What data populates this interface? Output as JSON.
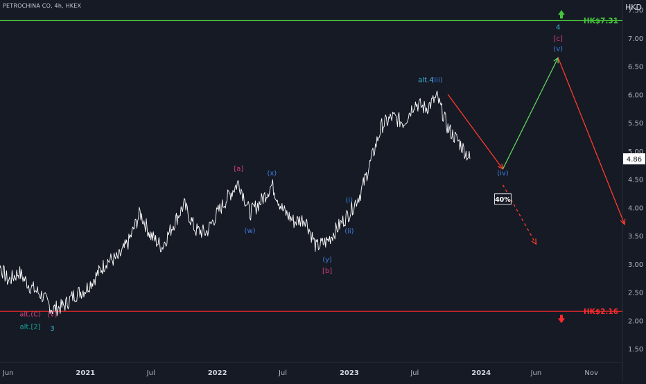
{
  "header": {
    "symbol_title": "PETROCHINA CO, 4h, HKEX",
    "currency": "HKD"
  },
  "chart_data": {
    "type": "line",
    "title": "PETROCHINA CO, 4h, HKEX",
    "xlabel": "",
    "ylabel": "",
    "currency": "HKD",
    "ylim": [
      1.5,
      7.5
    ],
    "grid": false,
    "y_ticks": [
      "7.50",
      "7.00",
      "6.50",
      "6.00",
      "5.50",
      "5.00",
      "4.50",
      "4.00",
      "3.50",
      "3.00",
      "2.50",
      "2.00",
      "1.50"
    ],
    "x_tick_labels": [
      "Jun",
      "2021",
      "Jul",
      "2022",
      "Jul",
      "2023",
      "Jul",
      "2024",
      "Jun",
      "Nov"
    ],
    "last_price": "4.86",
    "price_series": {
      "name": "",
      "color": "#ffffff",
      "points": [
        [
          "2020-04",
          2.8
        ],
        [
          "2020-05",
          3.05
        ],
        [
          "2020-06",
          2.7
        ],
        [
          "2020-07",
          2.85
        ],
        [
          "2020-08",
          2.6
        ],
        [
          "2020-09",
          2.45
        ],
        [
          "2020-10",
          2.2
        ],
        [
          "2020-11",
          2.25
        ],
        [
          "2020-12",
          2.45
        ],
        [
          "2021-01",
          2.55
        ],
        [
          "2021-02",
          2.8
        ],
        [
          "2021-03",
          3.05
        ],
        [
          "2021-04",
          3.1
        ],
        [
          "2021-05",
          3.4
        ],
        [
          "2021-06",
          3.9
        ],
        [
          "2021-07",
          3.5
        ],
        [
          "2021-08",
          3.3
        ],
        [
          "2021-09",
          3.7
        ],
        [
          "2021-10",
          4.05
        ],
        [
          "2021-11",
          3.6
        ],
        [
          "2021-12",
          3.55
        ],
        [
          "2022-01",
          3.9
        ],
        [
          "2022-02",
          4.2
        ],
        [
          "2022-03",
          4.45
        ],
        [
          "2022-04",
          3.9
        ],
        [
          "2022-05",
          4.1
        ],
        [
          "2022-06",
          4.4
        ],
        [
          "2022-07",
          3.95
        ],
        [
          "2022-08",
          3.75
        ],
        [
          "2022-09",
          3.8
        ],
        [
          "2022-10",
          3.3
        ],
        [
          "2022-11",
          3.4
        ],
        [
          "2022-12",
          3.65
        ],
        [
          "2023-01",
          3.9
        ],
        [
          "2023-02",
          4.25
        ],
        [
          "2023-03",
          4.8
        ],
        [
          "2023-04",
          5.45
        ],
        [
          "2023-05",
          5.6
        ],
        [
          "2023-06",
          5.5
        ],
        [
          "2023-07",
          5.85
        ],
        [
          "2023-08",
          5.75
        ],
        [
          "2023-09",
          5.95
        ],
        [
          "2023-10",
          5.4
        ],
        [
          "2023-11",
          5.15
        ],
        [
          "2023-12",
          4.86
        ]
      ]
    },
    "levels": [
      {
        "label": "HK$7.31",
        "value": 7.31,
        "color": "#46c33a",
        "arrow": "up"
      },
      {
        "label": "HK$2.16",
        "value": 2.16,
        "color": "#ff2b2b",
        "arrow": "down"
      }
    ],
    "projections": [
      {
        "from": [
          "2023-10",
          6.0
        ],
        "to": [
          "2024-03",
          4.68
        ],
        "color": "#ff3b2b",
        "dashed": false
      },
      {
        "from": [
          "2024-03",
          4.68
        ],
        "to": [
          "2024-08",
          6.65
        ],
        "color": "#5fd35a",
        "dashed": false
      },
      {
        "from": [
          "2024-08",
          6.65
        ],
        "to": [
          "2025-02",
          3.7
        ],
        "color": "#ff3b2b",
        "dashed": false
      },
      {
        "from": [
          "2024-03",
          4.4
        ],
        "to": [
          "2024-06",
          3.35
        ],
        "color": "#ff3b2b",
        "dashed": true
      }
    ],
    "annotations": [
      {
        "text": "[a]",
        "x": "2022-03",
        "y": 4.65,
        "color": "#d6407a"
      },
      {
        "text": "(x)",
        "x": "2022-06",
        "y": 4.57,
        "color": "#3f7fe0"
      },
      {
        "text": "(w)",
        "x": "2022-04",
        "y": 3.55,
        "color": "#3f7fe0"
      },
      {
        "text": "(i)",
        "x": "2023-01",
        "y": 4.09,
        "color": "#3f7fe0"
      },
      {
        "text": "(ii)",
        "x": "2023-01",
        "y": 3.54,
        "color": "#3f7fe0"
      },
      {
        "text": "(y)",
        "x": "2022-11",
        "y": 3.04,
        "color": "#3f7fe0"
      },
      {
        "text": "[b]",
        "x": "2022-11",
        "y": 2.84,
        "color": "#d6407a"
      },
      {
        "text": "alt.4",
        "x": "2023-08",
        "y": 6.22,
        "color": "#3fb6d8"
      },
      {
        "text": "(iii)",
        "x": "2023-09",
        "y": 6.22,
        "color": "#3f7fe0"
      },
      {
        "text": "(iv)",
        "x": "2024-03",
        "y": 4.57,
        "color": "#3f7fe0"
      },
      {
        "text": "4",
        "x": "2024-08",
        "y": 7.15,
        "color": "#3fb6d8"
      },
      {
        "text": "[c]",
        "x": "2024-08",
        "y": 6.95,
        "color": "#d6407a"
      },
      {
        "text": "(v)",
        "x": "2024-08",
        "y": 6.77,
        "color": "#3f7fe0"
      },
      {
        "text": "alt.(C)",
        "x": "2020-08",
        "y": 2.07,
        "color": "#d6407a"
      },
      {
        "text": "[v]",
        "x": "2020-10",
        "y": 2.07,
        "color": "#d6407a"
      },
      {
        "text": "alt.[2]",
        "x": "2020-08",
        "y": 1.85,
        "color": "#17a89a"
      },
      {
        "text": "3",
        "x": "2020-10",
        "y": 1.82,
        "color": "#3fb6d8"
      }
    ],
    "badge": {
      "text": "40%",
      "x": "2024-03",
      "y": 4.13
    }
  }
}
